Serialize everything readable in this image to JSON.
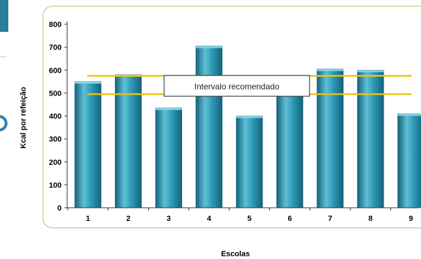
{
  "chart_data": {
    "type": "bar",
    "title": "",
    "xlabel": "Escolas",
    "ylabel": "Kcal por refeição",
    "categories": [
      "1",
      "2",
      "3",
      "4",
      "5",
      "6",
      "7",
      "8",
      "9"
    ],
    "values": [
      550,
      580,
      435,
      705,
      400,
      545,
      605,
      600,
      410
    ],
    "ylim": [
      0,
      800
    ],
    "yticks": [
      "0",
      "100",
      "200",
      "300",
      "400",
      "500",
      "600",
      "700",
      "800"
    ],
    "grid": false,
    "reference_lines": [
      {
        "name": "upper",
        "y": 575
      },
      {
        "name": "lower",
        "y": 495
      }
    ],
    "annotation": "Intervalo recomendado",
    "colors": {
      "bar_light": "#5fc0d6",
      "bar_mid": "#2f9cb8",
      "bar_dark": "#14627c",
      "bar_top": "#8fd8e8",
      "reference_line": "#e8c21a",
      "frame": "#b8cf8a",
      "axis": "#333333"
    }
  }
}
